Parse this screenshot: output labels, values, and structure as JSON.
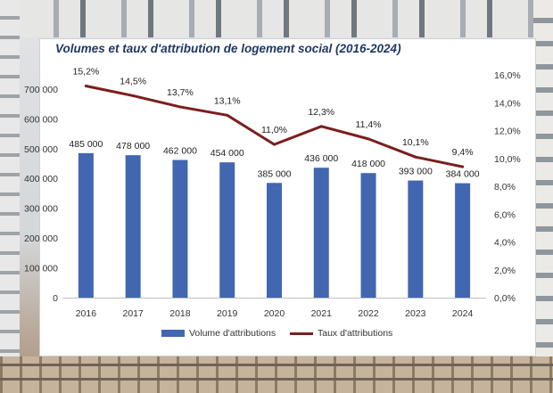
{
  "colors": {
    "bar": "#4167b1",
    "line": "#7b1e1e",
    "title": "#1f3864"
  },
  "chart_data": {
    "type": "bar",
    "title": "Volumes et taux d'attribution de logement social (2016-2024)",
    "categories": [
      "2016",
      "2017",
      "2018",
      "2019",
      "2020",
      "2021",
      "2022",
      "2023",
      "2024"
    ],
    "series": [
      {
        "name": "Volume d'attributions",
        "type": "bar",
        "axis": "left",
        "values": [
          485000,
          478000,
          462000,
          454000,
          385000,
          436000,
          418000,
          393000,
          384000
        ],
        "labels": [
          "485 000",
          "478 000",
          "462 000",
          "454 000",
          "385 000",
          "436 000",
          "418 000",
          "393 000",
          "384 000"
        ]
      },
      {
        "name": "Taux d'attributions",
        "type": "line",
        "axis": "right",
        "values": [
          15.2,
          14.5,
          13.7,
          13.1,
          11.0,
          12.3,
          11.4,
          10.1,
          9.4
        ],
        "labels": [
          "15,2%",
          "14,5%",
          "13,7%",
          "13,1%",
          "11,0%",
          "12,3%",
          "11,4%",
          "10,1%",
          "9,4%"
        ]
      }
    ],
    "ylim_left": [
      0,
      750000
    ],
    "yticks_left": [
      "0",
      "100 000",
      "200 000",
      "300 000",
      "400 000",
      "500 000",
      "600 000",
      "700 000"
    ],
    "ylim_right": [
      0,
      16
    ],
    "yticks_right": [
      "0,0%",
      "2,0%",
      "4,0%",
      "6,0%",
      "8,0%",
      "10,0%",
      "12,0%",
      "14,0%",
      "16,0%"
    ],
    "legend_position": "bottom",
    "grid": false
  }
}
